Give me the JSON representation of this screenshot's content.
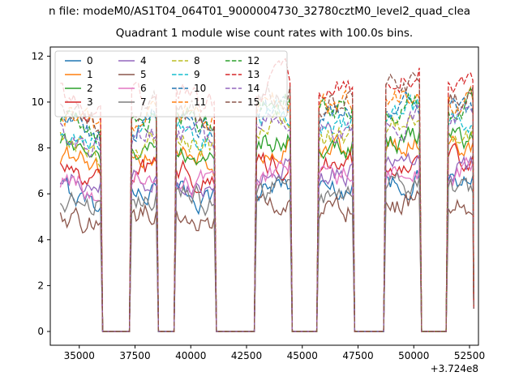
{
  "figure": {
    "suptitle": "n file: modeM0/AS1T04_064T01_9000004730_32780cztM0_level2_quad_clea",
    "title": "Quadrant 1 module wise count rates with 100.0s bins.",
    "offset_text": "+3.724e8",
    "background_color": "#ffffff"
  },
  "chart_data": {
    "type": "line",
    "title": "Quadrant 1 module wise count rates with 100.0s bins.",
    "xlabel": "",
    "ylabel": "",
    "grid": false,
    "legend_position": "upper left",
    "legend_columns": 4,
    "x_offset_label": "+3.724e8",
    "xlim": [
      33700,
      52900
    ],
    "ylim": [
      -0.6,
      12.4
    ],
    "xticks": [
      35000,
      37500,
      40000,
      42500,
      45000,
      47500,
      50000,
      52500
    ],
    "yticks": [
      0,
      2,
      4,
      6,
      8,
      10,
      12
    ],
    "bin_seconds": 100,
    "data_start": 34150,
    "data_end": 52650,
    "final_value": 1.0,
    "off_value": 0.0,
    "noise_amplitude": 0.42,
    "bursts": [
      [
        34150,
        36000
      ],
      [
        37300,
        38500
      ],
      [
        39300,
        41100
      ],
      [
        42900,
        44500
      ],
      [
        45700,
        47300
      ],
      [
        48700,
        50300
      ],
      [
        51500,
        52650
      ]
    ],
    "burst_scale": [
      0.92,
      0.95,
      0.93,
      1.0,
      0.98,
      1.02,
      1.0
    ],
    "burst_tilt": [
      -0.8,
      0.3,
      -0.4,
      0.4,
      0.2,
      0.3,
      0.1
    ],
    "series": [
      {
        "name": "0",
        "color": "#1f77b4",
        "linestyle": "solid",
        "level": 6.4
      },
      {
        "name": "1",
        "color": "#ff7f0e",
        "linestyle": "solid",
        "level": 8.0
      },
      {
        "name": "2",
        "color": "#2ca02c",
        "linestyle": "solid",
        "level": 8.3
      },
      {
        "name": "3",
        "color": "#d62728",
        "linestyle": "solid",
        "level": 7.4
      },
      {
        "name": "4",
        "color": "#9467bd",
        "linestyle": "solid",
        "level": 7.0
      },
      {
        "name": "5",
        "color": "#8c564b",
        "linestyle": "solid",
        "level": 5.4
      },
      {
        "name": "6",
        "color": "#e377c2",
        "linestyle": "solid",
        "level": 6.9
      },
      {
        "name": "7",
        "color": "#7f7f7f",
        "linestyle": "solid",
        "level": 6.2
      },
      {
        "name": "8",
        "color": "#bcbd22",
        "linestyle": "dashed",
        "level": 8.7
      },
      {
        "name": "9",
        "color": "#17becf",
        "linestyle": "dashed",
        "level": 9.3
      },
      {
        "name": "10",
        "color": "#1f77b4",
        "linestyle": "dashed",
        "level": 9.6
      },
      {
        "name": "11",
        "color": "#ff7f0e",
        "linestyle": "dashed",
        "level": 10.0
      },
      {
        "name": "12",
        "color": "#2ca02c",
        "linestyle": "dashed",
        "level": 9.8
      },
      {
        "name": "13",
        "color": "#d62728",
        "linestyle": "dashed",
        "level": 10.9
      },
      {
        "name": "14",
        "color": "#9467bd",
        "linestyle": "dashed",
        "level": 9.0
      },
      {
        "name": "15",
        "color": "#8c564b",
        "linestyle": "dashed",
        "level": 10.3
      }
    ]
  }
}
